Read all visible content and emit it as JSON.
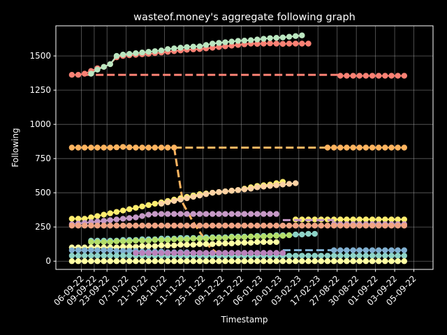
{
  "chart_data": {
    "type": "line",
    "title": "wasteof.money's aggregate following graph",
    "xlabel": "Timestamp",
    "ylabel": "Following",
    "ylim": [
      -60,
      1720
    ],
    "yticks": [
      0,
      250,
      500,
      750,
      1000,
      1250,
      1500
    ],
    "grid": true,
    "x_tick_labels": [
      "06-09-22",
      "09-09-22",
      "23-09-22",
      "07-10-22",
      "21-10-22",
      "28-10-22",
      "11-11-22",
      "25-11-22",
      "09-12-22",
      "23-12-22",
      "06-01-23",
      "20-01-23",
      "03-02-23",
      "17-02-23",
      "27-08-22",
      "30-08-22",
      "01-09-22",
      "03-09-22",
      "05-09-22"
    ],
    "x_tick_positions": [
      1.5,
      3.5,
      5.5,
      8.5,
      11.5,
      14.5,
      17.5,
      20.5,
      23.5,
      26.5,
      29.5,
      32.5,
      35.5,
      38.5,
      41.5,
      44.5,
      47.5,
      50.5,
      53.5
    ],
    "x_range": [
      -2.5,
      56.5
    ],
    "n_points": 53,
    "series": [
      {
        "color": "#fa8174",
        "segments": [
          {
            "style": "solid",
            "x_start": 0,
            "values": [
              1362,
              1362,
              1370,
              1390,
              1410,
              1420,
              1440,
              1490,
              1500,
              1505,
              1508,
              1512,
              1515,
              1520,
              1525,
              1530,
              1535,
              1540,
              1545,
              1548,
              1550,
              1555,
              1560,
              1565,
              1570,
              1575,
              1580,
              1585,
              1590,
              1588,
              1590,
              1592,
              1590,
              1588,
              1590,
              1590,
              1590,
              1590
            ]
          },
          {
            "style": "dashed",
            "x_start": 2,
            "values": [
              1362,
              1362
            ],
            "x_end": 42
          },
          {
            "style": "solid",
            "x_start": 42,
            "values": [
              1355,
              1355,
              1355,
              1355,
              1355,
              1355,
              1355,
              1355,
              1355,
              1355,
              1355
            ]
          }
        ]
      },
      {
        "color": "#bbe6c0",
        "segments": [
          {
            "style": "solid",
            "x_start": 3,
            "values": [
              1370,
              1400,
              1420,
              1440,
              1500,
              1510,
              1515,
              1520,
              1525,
              1530,
              1535,
              1540,
              1550,
              1555,
              1560,
              1565,
              1568,
              1570,
              1580,
              1590,
              1595,
              1600,
              1605,
              1610,
              1612,
              1615,
              1620,
              1625,
              1630,
              1632,
              1635,
              1640,
              1645,
              1650
            ]
          }
        ]
      },
      {
        "color": "#feb460",
        "segments": [
          {
            "style": "solid",
            "x_start": 0,
            "values": [
              830,
              830,
              830,
              830,
              830,
              830,
              830,
              832,
              835,
              832,
              830,
              830,
              830,
              830,
              830,
              830,
              830
            ]
          },
          {
            "style": "dashed",
            "x_start": 16,
            "values": [
              830,
              830
            ],
            "x_end": 40
          },
          {
            "style": "dashed",
            "x_start": 16,
            "values": [
              830,
              420,
              300,
              200,
              100,
              50
            ],
            "x_end": 23
          },
          {
            "style": "solid",
            "x_start": 40,
            "values": [
              830,
              830,
              830,
              830,
              830,
              830,
              830,
              830,
              830,
              830,
              830,
              830,
              830
            ]
          }
        ]
      },
      {
        "color": "#ffed6f",
        "segments": [
          {
            "style": "solid",
            "x_start": 0,
            "values": [
              310,
              310,
              310,
              320,
              330,
              340,
              350,
              360,
              370,
              380,
              390,
              400,
              410,
              420,
              430,
              440,
              450,
              460,
              470,
              480,
              490,
              495,
              500,
              505,
              510,
              515,
              520,
              530,
              540,
              550,
              555,
              560,
              570,
              580
            ]
          },
          {
            "style": "solid",
            "x_start": 35,
            "values": [
              305,
              305,
              305,
              305,
              305,
              305,
              305,
              305,
              305,
              305,
              305,
              305,
              305,
              305,
              305,
              305,
              305,
              305
            ]
          }
        ]
      },
      {
        "color": "#fdd2a4",
        "segments": [
          {
            "style": "solid",
            "x_start": 14,
            "values": [
              420,
              430,
              440,
              450,
              460,
              470,
              480,
              490,
              500,
              505,
              510,
              515,
              520,
              525,
              530,
              540,
              545,
              550,
              555,
              560,
              565,
              570
            ]
          }
        ]
      },
      {
        "color": "#c699c6",
        "segments": [
          {
            "style": "solid",
            "x_start": 0,
            "values": [
              270,
              275,
              280,
              285,
              290,
              295,
              300,
              305,
              310,
              315,
              320,
              330,
              340,
              345,
              345,
              345,
              345,
              345,
              345,
              345,
              345,
              345,
              345,
              345,
              345,
              345,
              345,
              345,
              345,
              345,
              345,
              345,
              345
            ]
          },
          {
            "style": "dashed",
            "x_start": 33,
            "values": [
              300,
              300
            ],
            "x_end": 41
          },
          {
            "style": "solid",
            "x_start": 41,
            "values": [
              270,
              270,
              270,
              270,
              270,
              270,
              270,
              270,
              270,
              270,
              270,
              270
            ]
          }
        ]
      },
      {
        "color": "#f2a484",
        "segments": [
          {
            "style": "solid",
            "x_start": 0,
            "values": [
              260,
              260,
              260,
              260,
              260,
              260,
              260,
              260,
              260,
              260,
              260,
              260,
              260,
              260,
              260,
              260,
              260,
              260,
              260,
              260,
              260,
              260,
              260,
              260,
              260,
              260,
              260,
              260,
              260,
              260,
              260,
              260,
              260,
              260,
              260,
              260,
              260,
              260,
              260,
              260,
              260,
              260,
              260,
              260,
              260,
              260,
              260,
              260,
              260,
              260,
              260,
              260,
              260
            ]
          }
        ]
      },
      {
        "color": "#8dd3c7",
        "segments": [
          {
            "style": "solid",
            "x_start": 3,
            "values": [
              150,
              150,
              150,
              150,
              150,
              155,
              155,
              155,
              160,
              160,
              160,
              165,
              165,
              165,
              170,
              170,
              170,
              170,
              175,
              175,
              175,
              175,
              180,
              180,
              180,
              180,
              185,
              185,
              185,
              190,
              190,
              190,
              195,
              195,
              200,
              200
            ]
          }
        ]
      },
      {
        "color": "#b3de69",
        "segments": [
          {
            "style": "solid",
            "x_start": 3,
            "values": [
              140,
              140,
              140,
              140,
              145,
              145,
              145,
              150,
              150,
              150,
              155,
              155,
              155,
              160,
              160,
              160,
              165,
              165,
              165,
              170,
              170,
              170,
              175,
              175,
              175,
              180,
              180,
              180,
              185,
              185,
              185,
              190
            ]
          }
        ]
      },
      {
        "color": "#fffea3",
        "segments": [
          {
            "style": "solid",
            "x_start": 0,
            "values": [
              100,
              100,
              100,
              100,
              100,
              100,
              100,
              100,
              105,
              105,
              105,
              110,
              110,
              110,
              115,
              115,
              115,
              120,
              120,
              120,
              125,
              125,
              125,
              130,
              130,
              130,
              135,
              135,
              135,
              140,
              140,
              140,
              140
            ]
          }
        ]
      },
      {
        "color": "#81b1d2",
        "segments": [
          {
            "style": "solid",
            "x_start": 0,
            "values": [
              80,
              80,
              80,
              80,
              80,
              80,
              80,
              75,
              75,
              75,
              75,
              70,
              70,
              70,
              70,
              65,
              65,
              65,
              65,
              60,
              60,
              60,
              60,
              60,
              60,
              60,
              60,
              60,
              60,
              60,
              60,
              60,
              60
            ]
          },
          {
            "style": "dashed",
            "x_start": 33,
            "values": [
              80,
              80
            ],
            "x_end": 41
          },
          {
            "style": "solid",
            "x_start": 41,
            "values": [
              80,
              80,
              80,
              80,
              80,
              80,
              80,
              80,
              80,
              80,
              80,
              80
            ]
          }
        ]
      },
      {
        "color": "#8dd3c7",
        "segments": [
          {
            "style": "solid",
            "x_start": 0,
            "values": [
              40,
              40,
              40,
              40,
              40,
              40,
              40,
              40,
              40,
              40,
              40,
              40,
              40,
              40,
              40,
              40,
              40,
              40,
              40,
              40,
              40,
              40,
              40,
              40,
              40,
              40,
              40,
              40,
              40,
              40,
              40,
              40,
              40,
              40,
              40,
              40,
              40,
              40,
              40,
              40,
              40,
              40,
              40,
              40,
              40,
              40,
              40,
              40,
              40,
              40,
              40,
              40,
              40
            ]
          }
        ]
      },
      {
        "color": "#bc82bd",
        "segments": [
          {
            "style": "solid",
            "x_start": 10,
            "values": [
              60,
              60,
              60,
              60,
              60,
              60,
              60,
              60,
              60,
              60,
              60,
              60,
              60,
              60,
              60,
              60,
              60,
              60,
              60,
              60,
              60,
              60,
              60,
              60
            ]
          }
        ]
      },
      {
        "color": "#fffea3",
        "segments": [
          {
            "style": "solid",
            "x_start": 0,
            "values": [
              0,
              0,
              0,
              0,
              0,
              0,
              0,
              0,
              0,
              0,
              0,
              0,
              0,
              0,
              0,
              0,
              0,
              0,
              0,
              0,
              0,
              0,
              0,
              0,
              0,
              0,
              0,
              0,
              0,
              0,
              0,
              0,
              0,
              0,
              0,
              0,
              0,
              0,
              0,
              0,
              0,
              0,
              0,
              0,
              0,
              0,
              0,
              0,
              0,
              0,
              0,
              0,
              0
            ]
          }
        ]
      }
    ]
  }
}
